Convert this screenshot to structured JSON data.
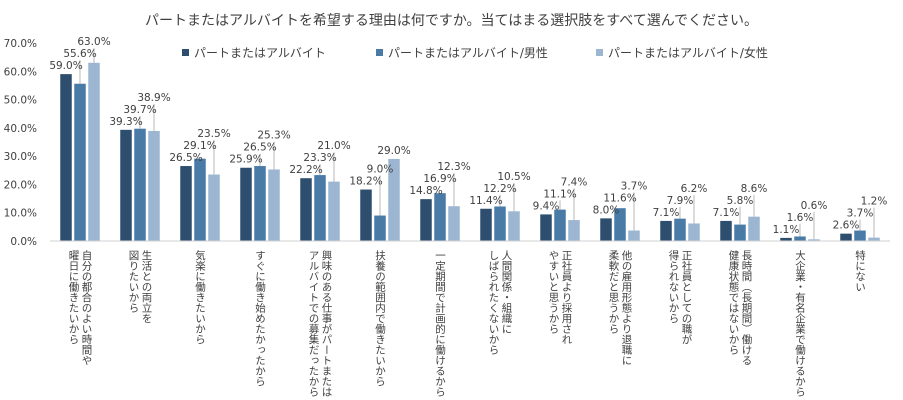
{
  "chart_data": {
    "type": "bar",
    "title": "パートまたはアルバイトを希望する理由は何ですか。当てはまる選択肢をすべて選んでください。",
    "xlabel": "",
    "ylabel": "",
    "ylim": [
      0,
      70
    ],
    "yticks": [
      "0.0%",
      "10.0%",
      "20.0%",
      "30.0%",
      "40.0%",
      "50.0%",
      "60.0%",
      "70.0%"
    ],
    "grid": false,
    "legend": "top",
    "colors": [
      "#2e4e6f",
      "#4a7ba7",
      "#9cb6d2"
    ],
    "categories": [
      [
        "曜日に働きたいから",
        "自分の都合のよい時間や"
      ],
      [
        "図りたいから",
        "生活との両立を"
      ],
      [
        "気楽に働きたいから"
      ],
      [
        "すぐに働き始めたかったから"
      ],
      [
        "アルバイトでの募集だったから",
        "興味のある仕事がパートまたは"
      ],
      [
        "扶養の範囲内で働きたいから"
      ],
      [
        "一定期間で計画的に働けるから"
      ],
      [
        "しばられたくないから",
        "人間関係・組織に"
      ],
      [
        "やすいと思うから",
        "正社員より採用され"
      ],
      [
        "柔軟だと思うから",
        "他の雇用形態より退職に"
      ],
      [
        "得られないから",
        "正社員としての職が"
      ],
      [
        "健康状態ではないから",
        "長時間（長期間）働ける"
      ],
      [
        "大企業・有名企業で働けるから"
      ],
      [
        "特にない"
      ]
    ],
    "series": [
      {
        "name": "パートまたはアルバイト",
        "values": [
          59.0,
          39.3,
          26.5,
          25.9,
          22.2,
          18.2,
          14.8,
          11.4,
          9.4,
          8.0,
          7.1,
          7.1,
          1.1,
          2.6
        ],
        "labels": [
          "59.0%",
          "39.3%",
          "26.5%",
          "25.9%",
          "22.2%",
          "18.2%",
          "14.8%",
          "11.4%",
          "9.4%",
          "8.0%",
          "7.1%",
          "7.1%",
          "1.1%",
          "2.6%"
        ]
      },
      {
        "name": "パートまたはアルバイト/男性",
        "values": [
          55.6,
          39.7,
          29.1,
          26.5,
          23.3,
          9.0,
          16.9,
          12.2,
          11.1,
          11.6,
          7.9,
          5.8,
          1.6,
          3.7
        ],
        "labels": [
          "55.6%",
          "39.7%",
          "29.1%",
          "26.5%",
          "23.3%",
          "9.0%",
          "16.9%",
          "12.2%",
          "11.1%",
          "11.6%",
          "7.9%",
          "5.8%",
          "1.6%",
          "3.7%"
        ]
      },
      {
        "name": "パートまたはアルバイト/女性",
        "values": [
          63.0,
          38.9,
          23.5,
          25.3,
          21.0,
          29.0,
          12.3,
          10.5,
          7.4,
          3.7,
          6.2,
          8.6,
          0.6,
          1.2
        ],
        "labels": [
          "63.0%",
          "38.9%",
          "23.5%",
          "25.3%",
          "21.0%",
          "29.0%",
          "12.3%",
          "10.5%",
          "7.4%",
          "3.7%",
          "6.2%",
          "8.6%",
          "0.6%",
          "1.2%"
        ]
      }
    ]
  }
}
